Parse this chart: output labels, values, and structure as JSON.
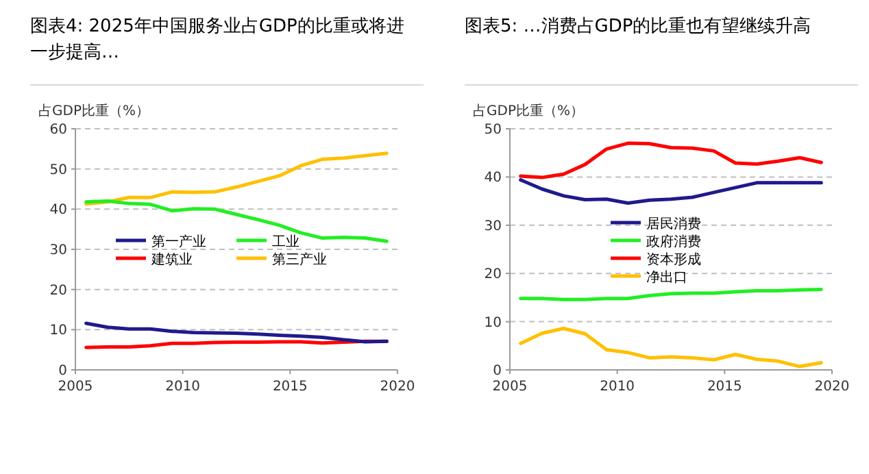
{
  "chart_data": [
    {
      "type": "line",
      "title": "图表4: 2025年中国服务业占GDP的比重或将进一步提高…",
      "ylabel": "占GDP比重（%）",
      "x": [
        2005.5,
        2006.5,
        2007.5,
        2008.5,
        2009.5,
        2010.5,
        2011.5,
        2012.5,
        2013.5,
        2014.5,
        2015.5,
        2016.5,
        2017.5,
        2018.5,
        2019.5
      ],
      "series": [
        {
          "name": "第一产业",
          "color": "#1f1a8c",
          "values": [
            11.6,
            10.6,
            10.2,
            10.2,
            9.6,
            9.3,
            9.2,
            9.1,
            8.9,
            8.6,
            8.4,
            8.1,
            7.5,
            7.0,
            7.1
          ]
        },
        {
          "name": "工业",
          "color": "#22ee22",
          "values": [
            41.8,
            42.0,
            41.4,
            41.2,
            39.6,
            40.1,
            40.0,
            38.7,
            37.4,
            36.0,
            34.1,
            32.8,
            33.0,
            32.8,
            32.0
          ]
        },
        {
          "name": "建筑业",
          "color": "#ff0000",
          "values": [
            5.6,
            5.7,
            5.7,
            6.0,
            6.6,
            6.6,
            6.8,
            6.9,
            6.9,
            7.0,
            7.0,
            6.7,
            6.9,
            7.1,
            7.1
          ]
        },
        {
          "name": "第三产业",
          "color": "#ffc000",
          "values": [
            41.3,
            41.8,
            42.9,
            42.9,
            44.3,
            44.2,
            44.3,
            45.5,
            46.9,
            48.3,
            50.8,
            52.4,
            52.7,
            53.3,
            53.9
          ]
        }
      ],
      "xlim": [
        2005,
        2020
      ],
      "xticks": [
        2005,
        2010,
        2015,
        2020
      ],
      "ylim": [
        0,
        60
      ],
      "yticks": [
        0,
        10,
        20,
        30,
        40,
        50,
        60
      ],
      "grid": "y",
      "legend": "center",
      "marker": "none",
      "line_style": "solid"
    },
    {
      "type": "line",
      "title": "图表5: …消费占GDP的比重也有望继续升高",
      "ylabel": "占GDP比重（%）",
      "x": [
        2005.5,
        2006.5,
        2007.5,
        2008.5,
        2009.5,
        2010.5,
        2011.5,
        2012.5,
        2013.5,
        2014.5,
        2015.5,
        2016.5,
        2017.5,
        2018.5,
        2019.5
      ],
      "series": [
        {
          "name": "居民消费",
          "color": "#1f1a8c",
          "values": [
            39.4,
            37.5,
            36.1,
            35.3,
            35.4,
            34.6,
            35.2,
            35.4,
            35.8,
            36.8,
            37.8,
            38.8,
            38.8,
            38.8,
            38.8
          ]
        },
        {
          "name": "政府消费",
          "color": "#22ee22",
          "values": [
            14.8,
            14.8,
            14.6,
            14.6,
            14.8,
            14.8,
            15.4,
            15.8,
            15.9,
            15.9,
            16.2,
            16.4,
            16.4,
            16.6,
            16.7
          ]
        },
        {
          "name": "资本形成",
          "color": "#ff0000",
          "values": [
            40.2,
            39.9,
            40.6,
            42.6,
            45.8,
            47.0,
            46.9,
            46.1,
            46.0,
            45.4,
            42.9,
            42.7,
            43.3,
            44.0,
            43.0
          ]
        },
        {
          "name": "净出口",
          "color": "#ffc000",
          "values": [
            5.5,
            7.6,
            8.6,
            7.5,
            4.2,
            3.6,
            2.5,
            2.7,
            2.5,
            2.1,
            3.2,
            2.2,
            1.8,
            0.7,
            1.5
          ]
        }
      ],
      "xlim": [
        2005,
        2020
      ],
      "xticks": [
        2005,
        2010,
        2015,
        2020
      ],
      "ylim": [
        0,
        50
      ],
      "yticks": [
        0,
        10,
        20,
        30,
        40,
        50
      ],
      "grid": "y",
      "legend": "center",
      "marker": "none",
      "line_style": "solid"
    }
  ]
}
